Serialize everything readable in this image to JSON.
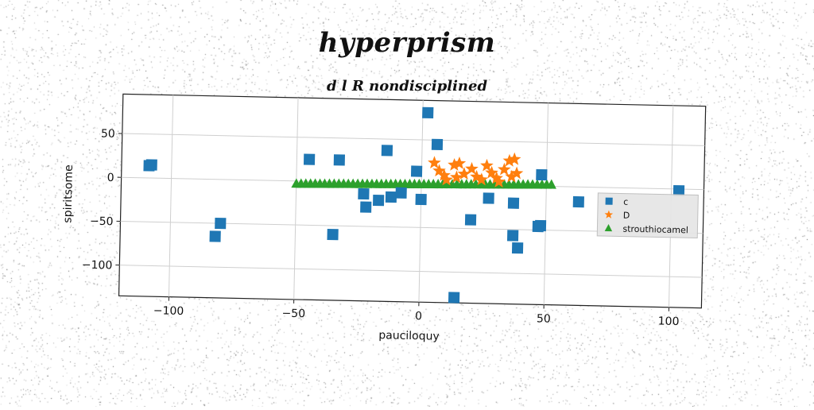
{
  "title": "hyperprism",
  "subtitle": "d l R nondisciplined",
  "chart_data": {
    "type": "scatter",
    "xlabel": "pauciloquy",
    "ylabel": "spiritsome",
    "xlim": [
      -120,
      113
    ],
    "ylim": [
      -135,
      95
    ],
    "xticks": [
      -100,
      -50,
      0,
      50,
      100
    ],
    "xtick_labels": [
      "−100",
      "−50",
      "0",
      "50",
      "100"
    ],
    "yticks": [
      -100,
      -50,
      0,
      50
    ],
    "ytick_labels": [
      "−100",
      "−50",
      "0",
      "50"
    ],
    "grid": true,
    "legend_position": "right",
    "series": [
      {
        "name": "c",
        "marker": "square",
        "color": "#1f77b4",
        "points": [
          [
            2,
            81
          ],
          [
            6,
            45
          ],
          [
            -14,
            37
          ],
          [
            -45,
            25
          ],
          [
            -33,
            25
          ],
          [
            -2,
            14
          ],
          [
            -108,
            15
          ],
          [
            -109,
            14
          ],
          [
            48,
            13
          ],
          [
            103,
            -2
          ],
          [
            -23,
            -13
          ],
          [
            -17,
            -20
          ],
          [
            -12,
            -16
          ],
          [
            -8,
            -11
          ],
          [
            0,
            -18
          ],
          [
            -22,
            -28
          ],
          [
            27,
            -15
          ],
          [
            37,
            -20
          ],
          [
            63,
            -17
          ],
          [
            20,
            -40
          ],
          [
            -80,
            -50
          ],
          [
            -82,
            -65
          ],
          [
            -35,
            -60
          ],
          [
            37,
            -57
          ],
          [
            48,
            -45
          ],
          [
            47,
            -46
          ],
          [
            39,
            -71
          ],
          [
            14,
            -129
          ]
        ]
      },
      {
        "name": "D",
        "marker": "star",
        "color": "#ff7f0e",
        "points": [
          [
            5,
            24
          ],
          [
            7,
            15
          ],
          [
            9,
            10
          ],
          [
            13,
            22
          ],
          [
            15,
            24
          ],
          [
            17,
            12
          ],
          [
            20,
            18
          ],
          [
            22,
            9
          ],
          [
            26,
            22
          ],
          [
            30,
            8
          ],
          [
            33,
            18
          ],
          [
            35,
            28
          ],
          [
            36,
            10
          ],
          [
            37,
            30
          ],
          [
            38,
            14
          ],
          [
            10,
            5
          ],
          [
            14,
            8
          ],
          [
            24,
            6
          ],
          [
            28,
            14
          ],
          [
            31,
            4
          ]
        ]
      },
      {
        "name": "strouthiocamel",
        "marker": "triangle",
        "color": "#2ca02c",
        "line": {
          "x_start": -50,
          "x_end": 52,
          "y_start": -3,
          "y_end": 2,
          "count": 55
        }
      }
    ]
  }
}
